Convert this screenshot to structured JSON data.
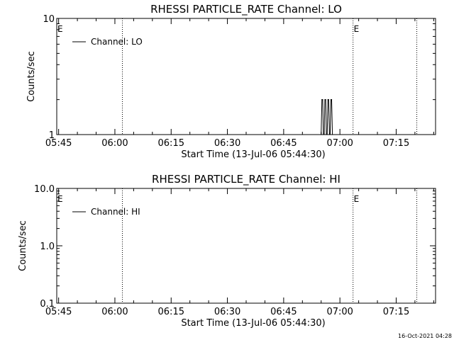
{
  "footer_timestamp": "16-Oct-2021 04:28",
  "chart_data": [
    {
      "type": "line",
      "title": "RHESSI PARTICLE_RATE Channel: LO",
      "xlabel": "Start Time (13-Jul-06 05:44:30)",
      "ylabel": "Counts/sec",
      "y_scale": "log",
      "ylim": [
        1,
        10
      ],
      "y_ticks": [
        {
          "label": "10",
          "value": 10
        },
        {
          "label": "1",
          "value": 1
        }
      ],
      "x_ticks": [
        "05:45",
        "06:00",
        "06:15",
        "06:30",
        "06:45",
        "07:00",
        "07:15"
      ],
      "xlim": [
        "05:44:30",
        "07:25:30"
      ],
      "vertical_markers": [
        {
          "time": "06:02:00",
          "label": ""
        },
        {
          "time": "07:03:30",
          "label": "E"
        },
        {
          "time": "07:20:30",
          "label": ""
        }
      ],
      "left_marker_label": "E",
      "legend": {
        "position": "top-left",
        "label": "Channel: LO"
      },
      "series": [
        {
          "name": "Channel: LO",
          "x": [
            "06:55:00",
            "06:55:12",
            "06:55:24",
            "06:55:36",
            "06:55:48",
            "06:56:00",
            "06:56:12",
            "06:56:24",
            "06:56:36",
            "06:56:48",
            "06:57:00",
            "06:57:12",
            "06:57:24",
            "06:57:36",
            "06:57:48",
            "06:58:00"
          ],
          "values": [
            1,
            2,
            2,
            1,
            1,
            2,
            2,
            1,
            1,
            2,
            2,
            1,
            1,
            2,
            2,
            1
          ]
        }
      ]
    },
    {
      "type": "line",
      "title": "RHESSI PARTICLE_RATE Channel: HI",
      "xlabel": "Start Time (13-Jul-06 05:44:30)",
      "ylabel": "Counts/sec",
      "y_scale": "log",
      "ylim": [
        0.1,
        10
      ],
      "y_ticks": [
        {
          "label": "10.0",
          "value": 10
        },
        {
          "label": "1.0",
          "value": 1
        },
        {
          "label": "0.1",
          "value": 0.1
        }
      ],
      "x_ticks": [
        "05:45",
        "06:00",
        "06:15",
        "06:30",
        "06:45",
        "07:00",
        "07:15"
      ],
      "xlim": [
        "05:44:30",
        "07:25:30"
      ],
      "vertical_markers": [
        {
          "time": "06:02:00",
          "label": ""
        },
        {
          "time": "07:03:30",
          "label": "E"
        },
        {
          "time": "07:20:30",
          "label": ""
        }
      ],
      "left_marker_label": "E",
      "legend": {
        "position": "top-left",
        "label": "Channel: HI"
      },
      "series": [
        {
          "name": "Channel: HI",
          "x": [],
          "values": []
        }
      ]
    }
  ]
}
